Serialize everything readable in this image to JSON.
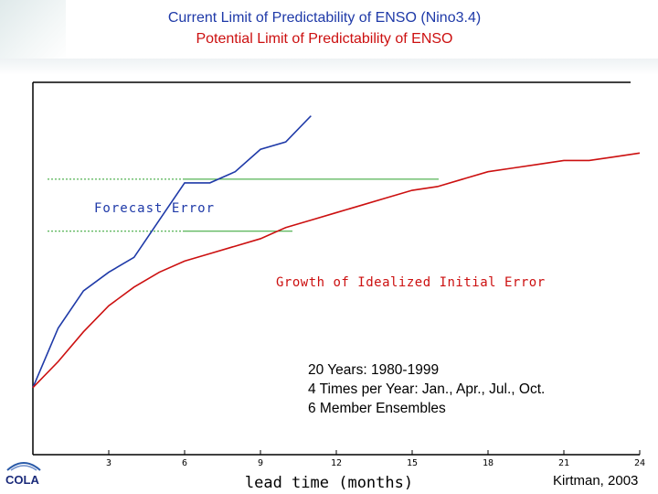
{
  "header": {
    "title_line1": "Current Limit of Predictability of ENSO (Nino3.4)",
    "title_line2": "Potential Limit of Predictability of ENSO",
    "title_line1_color": "#1f3aa8",
    "title_line2_color": "#cc1010"
  },
  "info_lines": [
    "20 Years: 1980-1999",
    "4 Times per Year: Jan., Apr., Jul., Oct.",
    "6 Member Ensembles"
  ],
  "credit": "Kirtman, 2003",
  "logo": {
    "text": "COLA",
    "icon": "cola-logo-icon"
  },
  "chart_data": {
    "type": "line",
    "xlabel": "lead time (months)",
    "ylabel": "",
    "x_ticks": [
      3,
      6,
      9,
      12,
      15,
      18,
      21,
      24
    ],
    "xlim": [
      0,
      24
    ],
    "ylim": [
      0,
      1
    ],
    "series": [
      {
        "name": "Forecast Error",
        "color": "#1f3aa8",
        "x": [
          0,
          1,
          2,
          3,
          4,
          5,
          6,
          7,
          8,
          9,
          10,
          11
        ],
        "y": [
          0.18,
          0.34,
          0.44,
          0.49,
          0.53,
          0.63,
          0.73,
          0.73,
          0.76,
          0.82,
          0.84,
          0.91
        ]
      },
      {
        "name": "Growth of Idealized Initial Error",
        "color": "#cc1010",
        "x": [
          0,
          1,
          2,
          3,
          4,
          5,
          6,
          7,
          8,
          9,
          10,
          11,
          12,
          13,
          14,
          15,
          16,
          17,
          18,
          19,
          20,
          21,
          22,
          23,
          24
        ],
        "y": [
          0.18,
          0.25,
          0.33,
          0.4,
          0.45,
          0.49,
          0.52,
          0.54,
          0.56,
          0.58,
          0.61,
          0.63,
          0.65,
          0.67,
          0.69,
          0.71,
          0.72,
          0.74,
          0.76,
          0.77,
          0.78,
          0.79,
          0.79,
          0.8,
          0.81
        ]
      }
    ],
    "reference_lines": [
      {
        "y": 0.74,
        "color": "#2aa02a"
      },
      {
        "y": 0.6,
        "color": "#2aa02a"
      }
    ],
    "grid": false
  }
}
